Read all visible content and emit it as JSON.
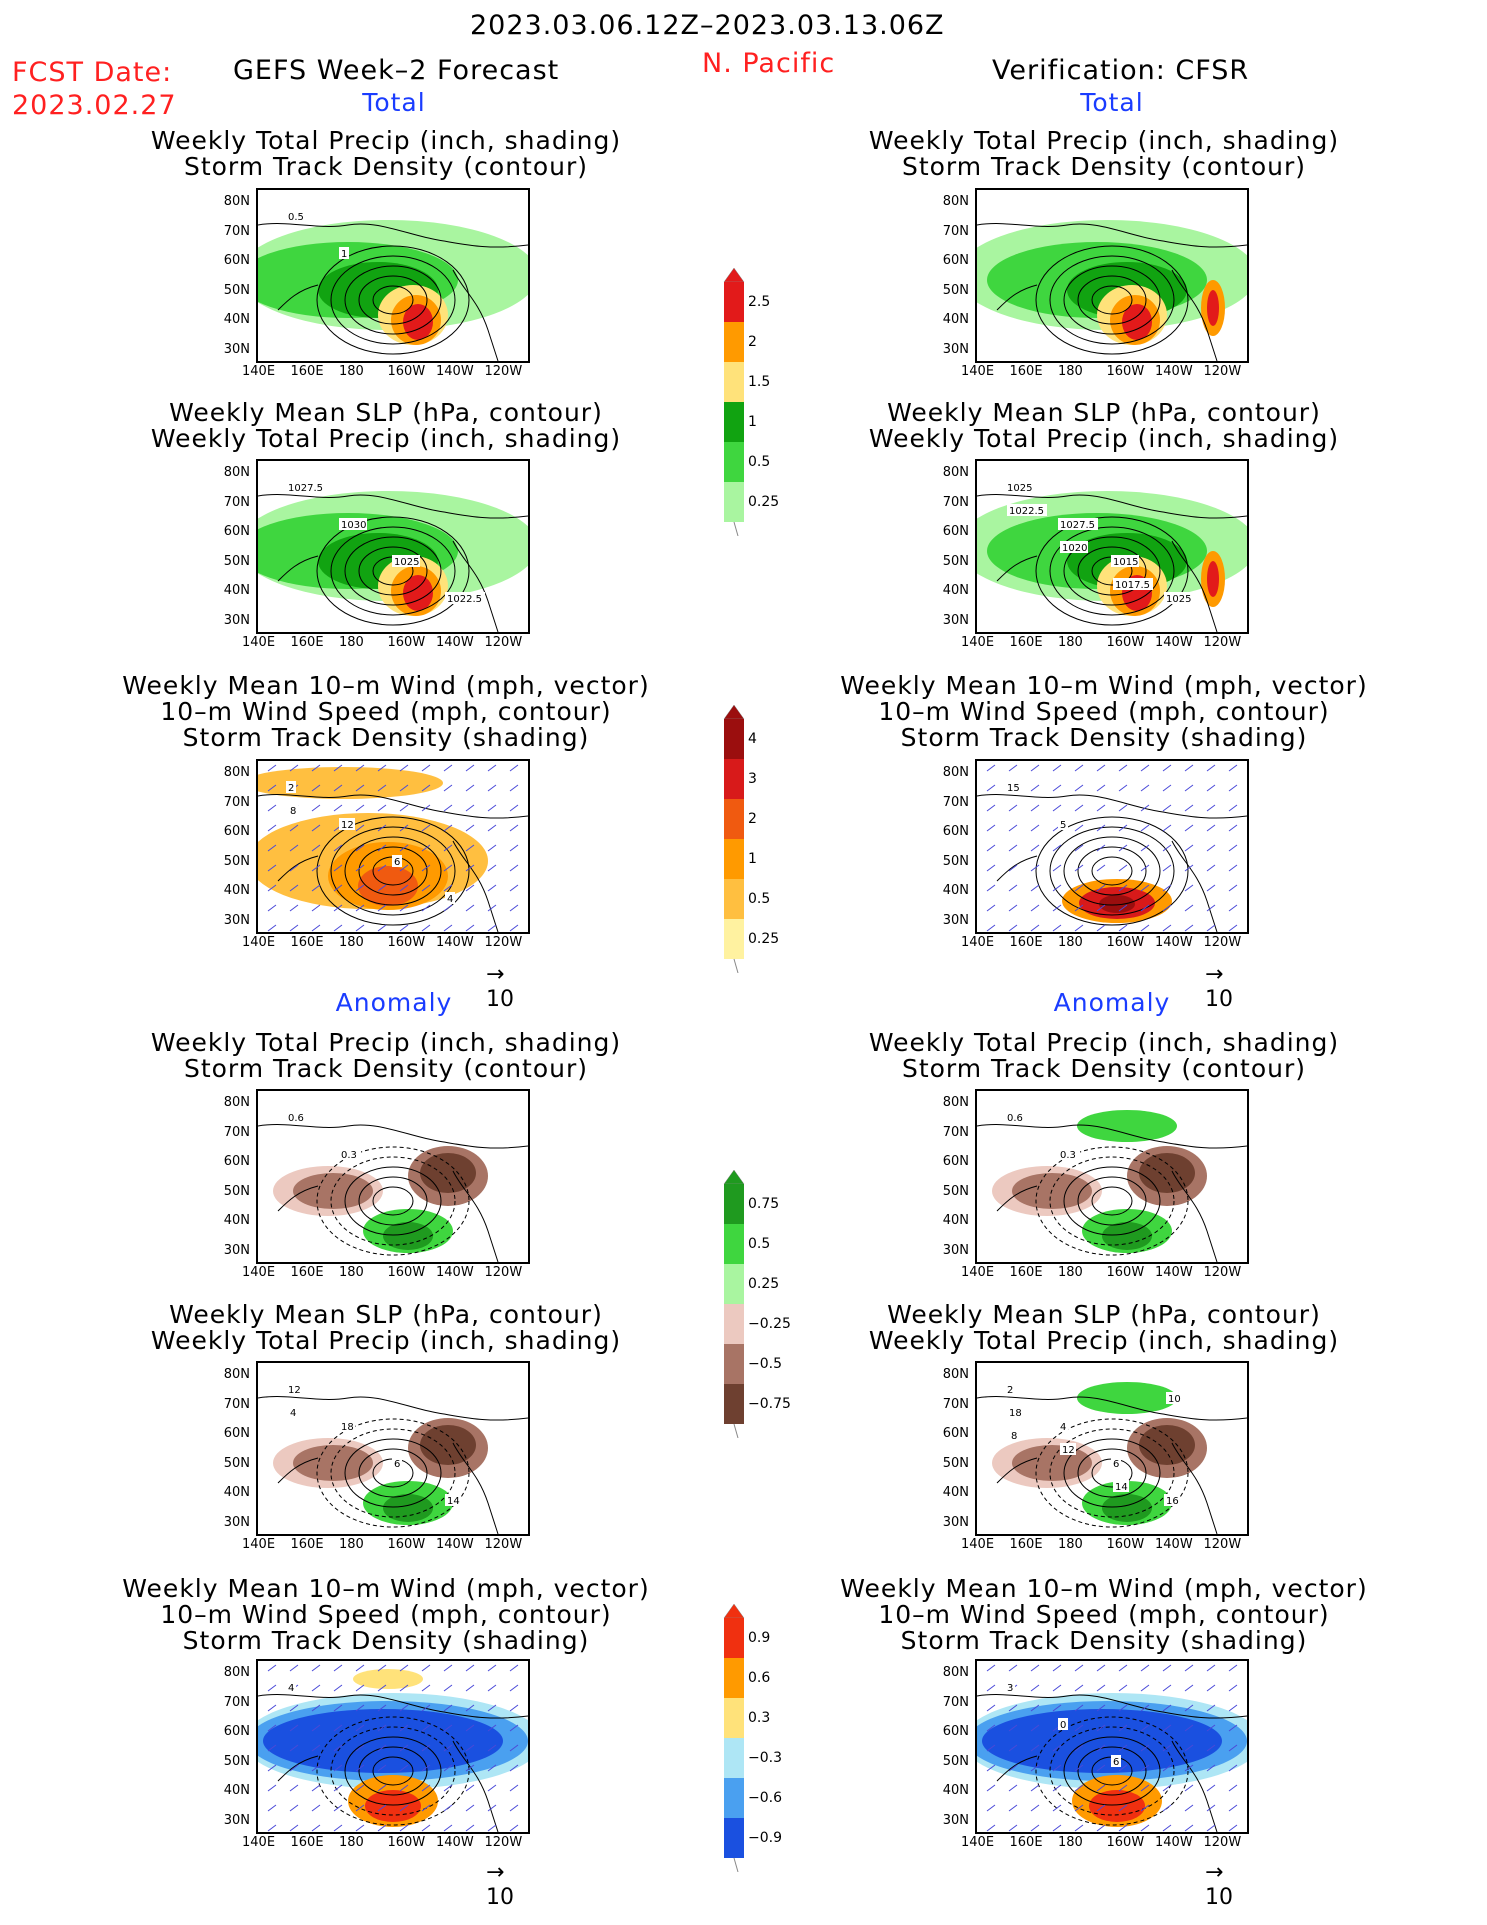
{
  "header": {
    "period": "2023.03.06.12Z–2023.03.13.06Z",
    "fcst_label": "FCST Date:",
    "fcst_date": "2023.02.27",
    "left_title": "GEFS Week–2 Forecast",
    "region": "N. Pacific",
    "right_title": "Verification: CFSR"
  },
  "sections": {
    "total": "Total",
    "anomaly": "Anomaly"
  },
  "panel_titles": {
    "precip_storm": [
      "Weekly Total Precip (inch, shading)",
      "Storm Track Density (contour)"
    ],
    "slp_precip": [
      "Weekly Mean SLP (hPa, contour)",
      "Weekly Total Precip (inch, shading)"
    ],
    "wind_storm": [
      "Weekly Mean 10–m Wind (mph, vector)",
      "10–m Wind Speed (mph, contour)",
      "Storm Track Density (shading)"
    ]
  },
  "axes": {
    "lat": [
      "80N",
      "70N",
      "60N",
      "50N",
      "40N",
      "30N"
    ],
    "lon": [
      "140E",
      "160E",
      "180",
      "160W",
      "140W",
      "120W"
    ]
  },
  "vector_ref": "10",
  "colorbars": {
    "precip_total": [
      "2.5",
      "2",
      "1.5",
      "1",
      "0.5",
      "0.25"
    ],
    "storm_total": [
      "4",
      "3",
      "2",
      "1",
      "0.5",
      "0.25"
    ],
    "precip_anom": [
      "0.75",
      "0.5",
      "0.25",
      "−0.25",
      "−0.5",
      "−0.75"
    ],
    "storm_anom": [
      "0.9",
      "0.6",
      "0.3",
      "−0.3",
      "−0.6",
      "−0.9"
    ]
  },
  "colors": {
    "precip_total": [
      "#e21a1a",
      "#ff9a00",
      "#ffe27a",
      "#11a311",
      "#3fd63f",
      "#a9f5a0"
    ],
    "storm_total": [
      "#9b0e0e",
      "#d81a1a",
      "#f05a10",
      "#ff9a00",
      "#ffbf40",
      "#fff2a0"
    ],
    "precip_anom": [
      "#1f9a1f",
      "#3fd63f",
      "#a9f5a0",
      "#ecc9c0",
      "#a87465",
      "#6e4030"
    ],
    "storm_anom": [
      "#f03010",
      "#ff9a00",
      "#ffe27a",
      "#aee6f5",
      "#4aa0f0",
      "#1a50e0"
    ]
  },
  "contour_labels": {
    "r1_left": [
      "0.5",
      "1"
    ],
    "r2_left": [
      "1027.5",
      "1030",
      "1025",
      "1022.5"
    ],
    "r2_right": [
      "1025",
      "1027.5",
      "1015",
      "1025",
      "1022.5",
      "1020",
      "1017.5"
    ],
    "r3_left": [
      "2",
      "12",
      "6",
      "4",
      "8"
    ],
    "r3_right": [
      "15",
      "5"
    ],
    "r4_left": [
      "0.6",
      "0.3"
    ],
    "r4_right": [
      "0.6",
      "0.3"
    ],
    "r5_left": [
      "12",
      "18",
      "6",
      "14",
      "4"
    ],
    "r5_right": [
      "2",
      "4",
      "6",
      "16",
      "18",
      "12",
      "14",
      "10",
      "8"
    ],
    "r6_left": [
      "4"
    ],
    "r6_right": [
      "3",
      "0",
      "6"
    ]
  }
}
